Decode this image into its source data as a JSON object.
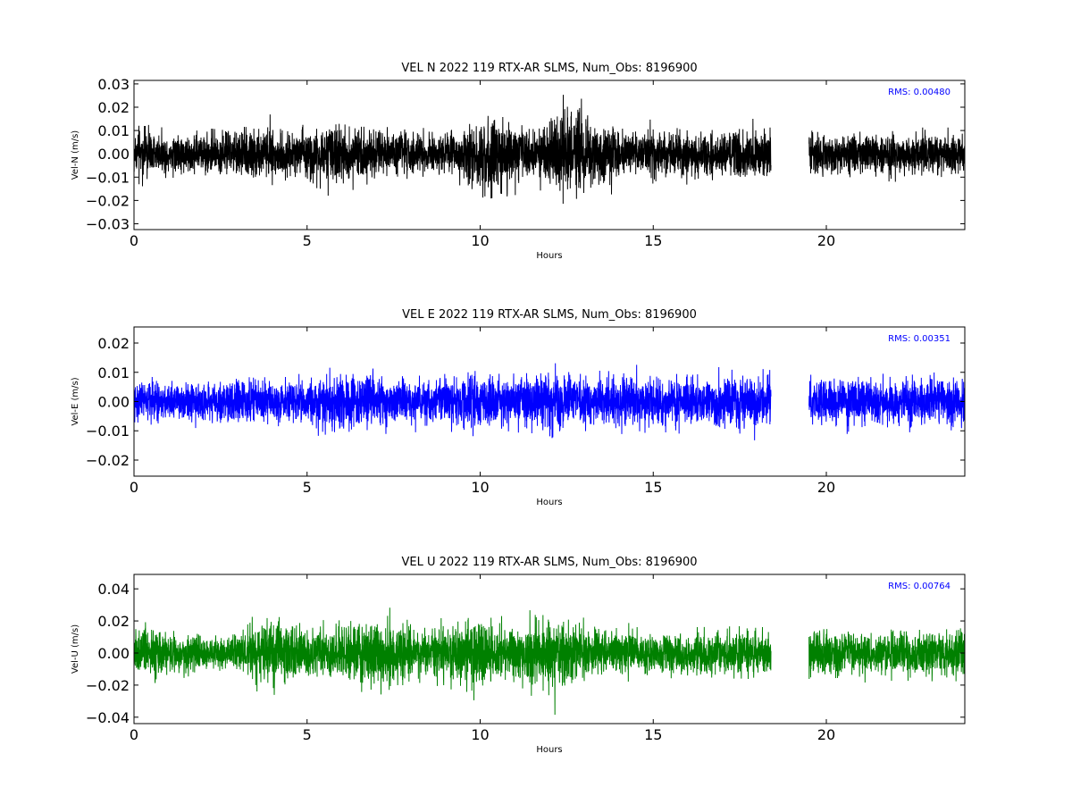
{
  "chart_data": [
    {
      "type": "line",
      "title": "VEL N 2022 119 RTX-AR  SLMS, Num_Obs: 8196900",
      "xlabel": "Hours",
      "ylabel": "Vel-N (m/s)",
      "xlim": [
        0,
        24
      ],
      "ylim": [
        -0.0325,
        0.0315
      ],
      "xticks": [
        0,
        5,
        10,
        15,
        20
      ],
      "xtick_labels": [
        "0",
        "5",
        "10",
        "15",
        "20"
      ],
      "yticks": [
        -0.03,
        -0.02,
        -0.01,
        0.0,
        0.01,
        0.02,
        0.03
      ],
      "ytick_labels": [
        "−0.03",
        "−0.02",
        "−0.01",
        "0.00",
        "0.01",
        "0.02",
        "0.03"
      ],
      "color": "#000000",
      "rms_label": "RMS:  0.00480",
      "series": [
        {
          "segments": [
            [
              0.0,
              18.4
            ],
            [
              19.5,
              24.0
            ]
          ],
          "envelope": {
            "x": [
              0,
              1,
              2,
              3,
              3.8,
              4.5,
              5.2,
              6.0,
              7.0,
              8.0,
              8.8,
              9.5,
              10.3,
              11.0,
              11.6,
              12.3,
              12.8,
              13.5,
              14.0,
              15.0,
              16.0,
              17.0,
              18.4,
              19.5,
              21.0,
              22.5,
              24.0
            ],
            "amp": [
              0.012,
              0.011,
              0.011,
              0.013,
              0.017,
              0.012,
              0.015,
              0.018,
              0.013,
              0.012,
              0.011,
              0.014,
              0.022,
              0.016,
              0.013,
              0.023,
              0.026,
              0.018,
              0.013,
              0.012,
              0.012,
              0.012,
              0.013,
              0.011,
              0.011,
              0.011,
              0.011
            ]
          }
        }
      ]
    },
    {
      "type": "line",
      "title": "VEL E 2022 119 RTX-AR  SLMS, Num_Obs: 8196900",
      "xlabel": "Hours",
      "ylabel": "Vel-E (m/s)",
      "xlim": [
        0,
        24
      ],
      "ylim": [
        -0.0255,
        0.0255
      ],
      "xticks": [
        0,
        5,
        10,
        15,
        20
      ],
      "xtick_labels": [
        "0",
        "5",
        "10",
        "15",
        "20"
      ],
      "yticks": [
        -0.02,
        -0.01,
        0.0,
        0.01,
        0.02
      ],
      "ytick_labels": [
        "−0.02",
        "−0.01",
        "0.00",
        "0.01",
        "0.02"
      ],
      "color": "#0000ff",
      "rms_label": "RMS:  0.00351",
      "series": [
        {
          "segments": [
            [
              0.0,
              18.4
            ],
            [
              19.5,
              24.0
            ]
          ],
          "envelope": {
            "x": [
              0,
              1,
              2,
              3,
              4,
              5,
              6,
              7,
              8,
              9,
              10,
              11,
              11.8,
              12.5,
              13.0,
              14.0,
              15.0,
              16.0,
              17.0,
              17.7,
              18.4,
              19.5,
              21.0,
              22.5,
              24.0
            ],
            "amp": [
              0.01,
              0.008,
              0.008,
              0.01,
              0.009,
              0.01,
              0.013,
              0.011,
              0.01,
              0.011,
              0.012,
              0.01,
              0.014,
              0.011,
              0.01,
              0.011,
              0.011,
              0.01,
              0.011,
              0.013,
              0.011,
              0.01,
              0.01,
              0.01,
              0.01
            ]
          }
        }
      ]
    },
    {
      "type": "line",
      "title": "VEL U 2022 119 RTX-AR  SLMS, Num_Obs: 8196900",
      "xlabel": "Hours",
      "ylabel": "Vel-U (m/s)",
      "xlim": [
        0,
        24
      ],
      "ylim": [
        -0.044,
        0.049
      ],
      "xticks": [
        0,
        5,
        10,
        15,
        20
      ],
      "xtick_labels": [
        "0",
        "5",
        "10",
        "15",
        "20"
      ],
      "yticks": [
        -0.04,
        -0.02,
        0.0,
        0.02,
        0.04
      ],
      "ytick_labels": [
        "−0.04",
        "−0.02",
        "0.00",
        "0.02",
        "0.04"
      ],
      "color": "#008000",
      "rms_label": "RMS:  0.00764",
      "series": [
        {
          "segments": [
            [
              0.0,
              18.4
            ],
            [
              19.5,
              24.0
            ]
          ],
          "envelope": {
            "x": [
              0,
              1,
              2,
              3,
              3.5,
              4.2,
              5.0,
              6.0,
              7.0,
              7.5,
              8.5,
              9.2,
              10.0,
              11.0,
              11.5,
              12.2,
              13.0,
              14.0,
              15.0,
              16.0,
              17.0,
              18.4,
              19.5,
              21.0,
              22.5,
              24.0
            ],
            "amp": [
              0.02,
              0.017,
              0.014,
              0.015,
              0.024,
              0.027,
              0.021,
              0.02,
              0.028,
              0.025,
              0.019,
              0.026,
              0.024,
              0.021,
              0.03,
              0.026,
              0.02,
              0.018,
              0.016,
              0.017,
              0.017,
              0.018,
              0.018,
              0.016,
              0.018,
              0.018
            ]
          }
        }
      ]
    }
  ]
}
